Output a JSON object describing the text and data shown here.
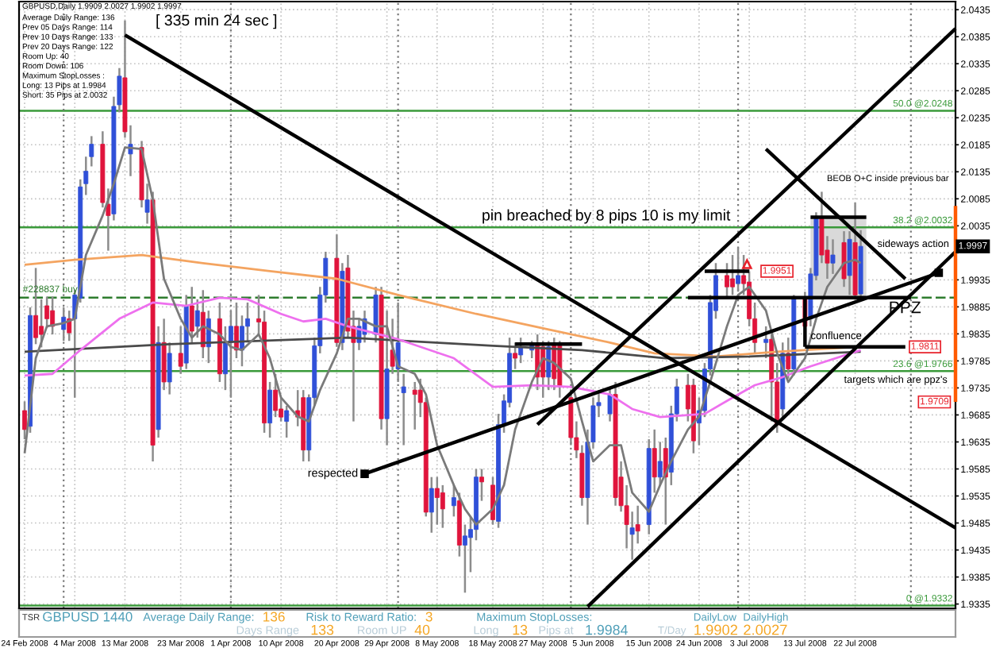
{
  "chart_data": [
    {
      "type": "candlestick",
      "title": "GBPUSD,Daily 1.9909 2.0027 1.9902 1.9997",
      "subtitle": "[ 335 min 24 sec ]",
      "x": [
        "2008-02-24",
        "2008-02-25",
        "2008-02-26",
        "2008-02-27",
        "2008-02-28",
        "2008-02-29",
        "2008-03-02",
        "2008-03-03",
        "2008-03-04",
        "2008-03-05",
        "2008-03-06",
        "2008-03-07",
        "2008-03-09",
        "2008-03-10",
        "2008-03-11",
        "2008-03-12",
        "2008-03-13",
        "2008-03-14",
        "2008-03-16",
        "2008-03-17",
        "2008-03-18",
        "2008-03-19",
        "2008-03-20",
        "2008-03-21",
        "2008-03-23",
        "2008-03-24",
        "2008-03-25",
        "2008-03-26",
        "2008-03-27",
        "2008-03-28",
        "2008-03-30",
        "2008-03-31",
        "2008-04-01",
        "2008-04-02",
        "2008-04-03",
        "2008-04-04",
        "2008-04-06",
        "2008-04-07",
        "2008-04-08",
        "2008-04-09",
        "2008-04-10",
        "2008-04-11",
        "2008-04-13",
        "2008-04-14",
        "2008-04-15",
        "2008-04-16",
        "2008-04-17",
        "2008-04-18",
        "2008-04-20",
        "2008-04-21",
        "2008-04-22",
        "2008-04-23",
        "2008-04-24",
        "2008-04-25",
        "2008-04-27",
        "2008-04-28",
        "2008-04-29",
        "2008-04-30",
        "2008-05-01",
        "2008-05-02",
        "2008-05-04",
        "2008-05-05",
        "2008-05-06",
        "2008-05-07",
        "2008-05-08",
        "2008-05-09",
        "2008-05-11",
        "2008-05-12",
        "2008-05-13",
        "2008-05-14",
        "2008-05-15",
        "2008-05-16",
        "2008-05-18",
        "2008-05-19",
        "2008-05-20",
        "2008-05-21",
        "2008-05-22",
        "2008-05-23",
        "2008-05-25",
        "2008-05-26",
        "2008-05-27",
        "2008-05-28",
        "2008-05-29",
        "2008-05-30",
        "2008-06-01",
        "2008-06-02",
        "2008-06-03",
        "2008-06-04",
        "2008-06-05",
        "2008-06-06",
        "2008-06-08",
        "2008-06-09",
        "2008-06-10",
        "2008-06-11",
        "2008-06-12",
        "2008-06-13",
        "2008-06-15",
        "2008-06-16",
        "2008-06-17",
        "2008-06-18",
        "2008-06-19",
        "2008-06-20",
        "2008-06-22",
        "2008-06-23",
        "2008-06-24",
        "2008-06-25",
        "2008-06-26",
        "2008-06-27",
        "2008-06-29",
        "2008-06-30",
        "2008-07-01",
        "2008-07-02",
        "2008-07-03",
        "2008-07-04",
        "2008-07-06",
        "2008-07-07",
        "2008-07-08",
        "2008-07-09",
        "2008-07-10",
        "2008-07-11",
        "2008-07-13",
        "2008-07-14",
        "2008-07-15",
        "2008-07-16",
        "2008-07-17",
        "2008-07-18",
        "2008-07-20",
        "2008-07-21",
        "2008-07-22",
        "2008-07-23"
      ],
      "ohlc": [
        [
          1.9693,
          1.971,
          1.964,
          1.9658
        ],
        [
          1.9664,
          1.9884,
          1.9652,
          1.9869
        ],
        [
          1.9869,
          1.9957,
          1.9816,
          1.9828
        ],
        [
          1.9849,
          1.9899,
          1.981,
          1.9834
        ],
        [
          1.9887,
          1.9904,
          1.9846,
          1.9863
        ],
        [
          1.9878,
          1.9904,
          1.9834,
          1.9849
        ],
        [
          1.9843,
          1.9884,
          1.9822,
          1.9866
        ],
        [
          1.9863,
          1.9878,
          1.9822,
          1.9837
        ],
        [
          1.9863,
          1.9916,
          1.9717,
          1.9907
        ],
        [
          1.9901,
          2.0121,
          1.9893,
          2.0107
        ],
        [
          2.0113,
          2.0163,
          2.0092,
          2.0136
        ],
        [
          2.0163,
          2.0201,
          2.0145,
          2.0186
        ],
        [
          2.0186,
          2.021,
          2.0069,
          2.0078
        ],
        [
          2.0075,
          2.0104,
          1.9989,
          2.0054
        ],
        [
          2.0057,
          2.0274,
          2.0045,
          2.0256
        ],
        [
          2.0259,
          2.0327,
          2.0245,
          2.0312
        ],
        [
          2.0309,
          2.0415,
          2.0198,
          2.0209
        ],
        [
          2.0168,
          2.0221,
          2.0127,
          2.0186
        ],
        [
          2.018,
          2.0192,
          2.0069,
          2.0083
        ],
        [
          2.006,
          2.0113,
          2.0039,
          2.0083
        ],
        [
          2.0083,
          2.0098,
          1.9599,
          1.9629
        ],
        [
          1.9658,
          1.9849,
          1.9643,
          1.9819
        ],
        [
          1.9819,
          1.9863,
          1.9731,
          1.9746
        ],
        [
          1.9746,
          1.9819,
          1.9723,
          1.9799
        ],
        [
          1.9799,
          1.9849,
          1.9761,
          1.9775
        ],
        [
          1.9781,
          1.9907,
          1.977,
          1.9887
        ],
        [
          1.9887,
          1.9922,
          1.9819,
          1.984
        ],
        [
          1.9849,
          1.9899,
          1.9828,
          1.9878
        ],
        [
          1.9875,
          1.9916,
          1.979,
          1.9811
        ],
        [
          1.9811,
          1.9878,
          1.9781,
          1.9863
        ],
        [
          1.9863,
          1.9893,
          1.9746,
          1.9761
        ],
        [
          1.9761,
          1.9849,
          1.9731,
          1.9819
        ],
        [
          1.9819,
          1.9878,
          1.9717,
          1.9849
        ],
        [
          1.9849,
          1.9893,
          1.979,
          1.9805
        ],
        [
          1.9805,
          1.9869,
          1.9775,
          1.9849
        ],
        [
          1.9849,
          1.9893,
          1.9819,
          1.9863
        ],
        [
          1.9863,
          1.9907,
          1.9834,
          1.9857
        ],
        [
          1.9857,
          1.9878,
          1.9652,
          1.967
        ],
        [
          1.967,
          1.9746,
          1.9643,
          1.9731
        ],
        [
          1.9731,
          1.9761,
          1.9681,
          1.9693
        ],
        [
          1.9696,
          1.9717,
          1.9673,
          1.9681
        ],
        [
          1.9673,
          1.9702,
          1.9643,
          1.9693
        ],
        [
          1.9693,
          1.9731,
          1.9664,
          1.9681
        ],
        [
          1.9717,
          1.9731,
          1.9599,
          1.962
        ],
        [
          1.962,
          1.9723,
          1.9599,
          1.9717
        ],
        [
          1.9717,
          1.9828,
          1.9702,
          1.9813
        ],
        [
          1.9813,
          1.9922,
          1.9799,
          1.9907
        ],
        [
          1.9907,
          1.9987,
          1.9893,
          1.9975
        ],
        [
          1.9975,
          2.0019,
          1.9811,
          1.9819
        ],
        [
          1.9819,
          1.9966,
          1.9805,
          1.9951
        ],
        [
          1.9957,
          1.9981,
          1.9828,
          1.984
        ],
        [
          1.9849,
          1.9878,
          1.9673,
          1.9819
        ],
        [
          1.9819,
          1.9863,
          1.9805,
          1.9849
        ],
        [
          1.9834,
          1.9878,
          1.9819,
          1.9863
        ],
        [
          1.9834,
          1.9922,
          1.9819,
          1.9907
        ],
        [
          1.9907,
          1.9922,
          1.9658,
          1.9678
        ],
        [
          1.9678,
          1.9878,
          1.9629,
          1.977
        ],
        [
          1.9805,
          1.9863,
          1.9761,
          1.9775
        ],
        [
          1.977,
          1.9893,
          1.9746,
          1.9819
        ],
        [
          1.9726,
          1.9761,
          1.9629,
          1.9737
        ],
        [
          1.9731,
          1.9746,
          1.9658,
          1.9723
        ],
        [
          1.9731,
          1.9752,
          1.9681,
          1.9708
        ],
        [
          1.9708,
          1.9717,
          1.9497,
          1.9505
        ],
        [
          1.9505,
          1.957,
          1.9467,
          1.9549
        ],
        [
          1.9549,
          1.957,
          1.9482,
          1.9532
        ],
        [
          1.9541,
          1.9555,
          1.9476,
          1.9511
        ],
        [
          1.9517,
          1.9555,
          1.9497,
          1.9532
        ],
        [
          1.9526,
          1.9541,
          1.9423,
          1.9444
        ],
        [
          1.9444,
          1.9482,
          1.9356,
          1.9461
        ],
        [
          1.9458,
          1.9497,
          1.9394,
          1.9473
        ],
        [
          1.9473,
          1.9585,
          1.9453,
          1.957
        ],
        [
          1.957,
          1.9585,
          1.9526,
          1.9561
        ],
        [
          1.9555,
          1.957,
          1.9482,
          1.9491
        ],
        [
          1.9488,
          1.9687,
          1.9476,
          1.9667
        ],
        [
          1.9667,
          1.9723,
          1.9652,
          1.9711
        ],
        [
          1.9708,
          1.9828,
          1.9699,
          1.9799
        ],
        [
          1.9799,
          1.9819,
          1.977,
          1.979
        ],
        [
          1.9796,
          1.9828,
          1.9781,
          1.9811
        ],
        [
          1.9805,
          1.9822,
          1.979,
          1.9813
        ],
        [
          1.9813,
          1.9834,
          1.9731,
          1.9755
        ],
        [
          1.9811,
          1.9822,
          1.9717,
          1.9755
        ],
        [
          1.9755,
          1.9822,
          1.9731,
          1.9811
        ],
        [
          1.9813,
          1.9828,
          1.9731,
          1.9752
        ],
        [
          1.9813,
          1.9822,
          1.9717,
          1.9737
        ],
        [
          1.9717,
          1.9731,
          1.9629,
          1.9643
        ],
        [
          1.9643,
          1.9673,
          1.9605,
          1.962
        ],
        [
          1.9614,
          1.9629,
          1.9517,
          1.9532
        ],
        [
          1.9532,
          1.9658,
          1.9482,
          1.9635
        ],
        [
          1.9635,
          1.9717,
          1.9623,
          1.9702
        ],
        [
          1.9702,
          1.9731,
          1.9681,
          1.9708
        ],
        [
          1.9687,
          1.9734,
          1.9673,
          1.9723
        ],
        [
          1.9723,
          1.9746,
          1.9517,
          1.9532
        ],
        [
          1.957,
          1.9599,
          1.9506,
          1.9517
        ],
        [
          1.9517,
          1.9555,
          1.9438,
          1.9482
        ],
        [
          1.9464,
          1.9506,
          1.9417,
          1.9476
        ],
        [
          1.9482,
          1.9517,
          1.9447,
          1.947
        ],
        [
          1.9482,
          1.964,
          1.9464,
          1.9623
        ],
        [
          1.9623,
          1.9658,
          1.9541,
          1.957
        ],
        [
          1.957,
          1.9635,
          1.9555,
          1.9599
        ],
        [
          1.9623,
          1.9643,
          1.9482,
          1.957
        ],
        [
          1.9579,
          1.9702,
          1.9555,
          1.9687
        ],
        [
          1.9687,
          1.9752,
          1.9673,
          1.9737
        ],
        [
          1.974,
          1.9761,
          1.9673,
          1.9696
        ],
        [
          1.974,
          1.9752,
          1.9614,
          1.9637
        ],
        [
          1.967,
          1.9717,
          1.9629,
          1.9693
        ],
        [
          1.9693,
          1.9781,
          1.9681,
          1.977
        ],
        [
          1.977,
          1.9907,
          1.9758,
          1.9893
        ],
        [
          1.9878,
          1.9966,
          1.9863,
          1.9943
        ],
        [
          1.9943,
          1.9966,
          1.9904,
          1.9922
        ],
        [
          1.9937,
          1.9981,
          1.9907,
          1.9922
        ],
        [
          1.9928,
          1.9995,
          1.9913,
          1.9943
        ],
        [
          1.9943,
          1.9981,
          1.9907,
          1.9928
        ],
        [
          1.9931,
          1.9951,
          1.9849,
          1.9863
        ],
        [
          1.9863,
          1.9893,
          1.9799,
          1.9819
        ],
        [
          1.9819,
          1.9849,
          1.979,
          1.9825
        ],
        [
          1.9825,
          1.9834,
          1.9673,
          1.9746
        ],
        [
          1.9746,
          1.9781,
          1.9652,
          1.9667
        ],
        [
          1.9696,
          1.9819,
          1.9681,
          1.9799
        ],
        [
          1.9799,
          1.9828,
          1.9752,
          1.977
        ],
        [
          1.977,
          1.9907,
          1.9758,
          1.9899
        ],
        [
          1.9899,
          1.9913,
          1.9834,
          1.9849
        ],
        [
          1.9863,
          1.9957,
          1.9849,
          1.9946
        ],
        [
          1.9943,
          2.006,
          1.9934,
          2.0048
        ],
        [
          2.0048,
          2.0098,
          1.9966,
          1.9981
        ],
        [
          1.999,
          2.0016,
          1.9937,
          1.9966
        ],
        [
          1.9966,
          2.001,
          1.9946,
          1.9981
        ],
        [
          2.0004,
          2.0025,
          1.9922,
          1.9937
        ],
        [
          1.9943,
          2.0025,
          1.9907,
          2.001
        ],
        [
          2.0004,
          2.0078,
          1.9898,
          1.9907
        ],
        [
          1.9909,
          2.0027,
          1.9902,
          1.9997
        ]
      ],
      "colors": [
        "#e0143c",
        "#3050d8",
        "#e0143c",
        "#e0143c",
        "#e0143c",
        "#e0143c",
        "#3050d8",
        "#e0143c",
        "#3050d8",
        "#3050d8",
        "#3050d8",
        "#3050d8",
        "#e0143c",
        "#e0143c",
        "#3050d8",
        "#3050d8",
        "#e0143c",
        "#3050d8",
        "#e0143c",
        "#3050d8",
        "#e0143c",
        "#3050d8",
        "#e0143c",
        "#3050d8",
        "#e0143c",
        "#3050d8",
        "#e0143c",
        "#3050d8",
        "#e0143c",
        "#3050d8",
        "#e0143c",
        "#3050d8",
        "#3050d8",
        "#e0143c",
        "#3050d8",
        "#3050d8",
        "#e0143c",
        "#e0143c",
        "#3050d8",
        "#e0143c",
        "#e0143c",
        "#3050d8",
        "#e0143c",
        "#e0143c",
        "#3050d8",
        "#3050d8",
        "#3050d8",
        "#3050d8",
        "#e0143c",
        "#3050d8",
        "#e0143c",
        "#e0143c",
        "#3050d8",
        "#3050d8",
        "#3050d8",
        "#e0143c",
        "#3050d8",
        "#e0143c",
        "#3050d8",
        "#3050d8",
        "#e0143c",
        "#e0143c",
        "#e0143c",
        "#3050d8",
        "#e0143c",
        "#e0143c",
        "#3050d8",
        "#e0143c",
        "#3050d8",
        "#3050d8",
        "#3050d8",
        "#e0143c",
        "#e0143c",
        "#3050d8",
        "#3050d8",
        "#3050d8",
        "#e0143c",
        "#3050d8",
        "#3050d8",
        "#e0143c",
        "#e0143c",
        "#3050d8",
        "#e0143c",
        "#e0143c",
        "#e0143c",
        "#e0143c",
        "#e0143c",
        "#3050d8",
        "#3050d8",
        "#3050d8",
        "#3050d8",
        "#e0143c",
        "#e0143c",
        "#e0143c",
        "#3050d8",
        "#e0143c",
        "#3050d8",
        "#e0143c",
        "#3050d8",
        "#e0143c",
        "#3050d8",
        "#3050d8",
        "#e0143c",
        "#e0143c",
        "#3050d8",
        "#3050d8",
        "#3050d8",
        "#3050d8",
        "#e0143c",
        "#e0143c",
        "#3050d8",
        "#e0143c",
        "#e0143c",
        "#e0143c",
        "#3050d8",
        "#e0143c",
        "#e0143c",
        "#3050d8",
        "#e0143c",
        "#3050d8",
        "#e0143c",
        "#3050d8",
        "#3050d8",
        "#e0143c",
        "#e0143c",
        "#3050d8",
        "#e0143c",
        "#3050d8",
        "#e0143c",
        "#3050d8"
      ],
      "xlim": [
        "2008-02-23",
        "2008-08-09"
      ],
      "xticks": [
        {
          "value": "2008-02-24",
          "label": "24 Feb 2008"
        },
        {
          "value": "2008-03-04",
          "label": "4 Mar 2008"
        },
        {
          "value": "2008-03-13",
          "label": "13 Mar 2008"
        },
        {
          "value": "2008-03-23",
          "label": "23 Mar 2008"
        },
        {
          "value": "2008-04-01",
          "label": "1 Apr 2008"
        },
        {
          "value": "2008-04-10",
          "label": "10 Apr 2008"
        },
        {
          "value": "2008-04-20",
          "label": "20 Apr 2008"
        },
        {
          "value": "2008-04-29",
          "label": "29 Apr 2008"
        },
        {
          "value": "2008-05-08",
          "label": "8 May 2008"
        },
        {
          "value": "2008-05-18",
          "label": "18 May 2008"
        },
        {
          "value": "2008-05-27",
          "label": "27 May 2008"
        },
        {
          "value": "2008-06-05",
          "label": "5 Jun 2008"
        },
        {
          "value": "2008-06-15",
          "label": "15 Jun 2008"
        },
        {
          "value": "2008-06-24",
          "label": "24 Jun 2008"
        },
        {
          "value": "2008-07-03",
          "label": "3 Jul 2008"
        },
        {
          "value": "2008-07-13",
          "label": "13 Jul 2008"
        },
        {
          "value": "2008-07-22",
          "label": "22 Jul 2008"
        }
      ],
      "ylim": [
        1.9327,
        2.045
      ],
      "yticks": [
        2.0435,
        2.0385,
        2.0335,
        2.0285,
        2.0235,
        2.0185,
        2.0135,
        2.0085,
        2.0035,
        {
          "value": 1.9985,
          "label": null
        },
        1.9935,
        1.9885,
        1.9835,
        1.9785,
        1.9735,
        1.9685,
        1.9635,
        1.9585,
        1.9535,
        1.9485,
        1.9435,
        1.9385,
        1.9335
      ],
      "grid": true,
      "series": [
        {
          "type": "line",
          "color": "#f4a460",
          "x": [
            "2008-02-24",
            "2008-03-04",
            "2008-03-16",
            "2008-03-27",
            "2008-04-08",
            "2008-04-20",
            "2008-05-01",
            "2008-05-15",
            "2008-05-28",
            "2008-06-08",
            "2008-06-16",
            "2008-06-27",
            "2008-07-08",
            "2008-07-23"
          ],
          "values": [
            1.9963,
            1.9972,
            1.9981,
            1.9966,
            1.9951,
            1.9937,
            1.9907,
            1.9872,
            1.9843,
            1.9819,
            1.9799,
            1.9793,
            1.9802,
            1.9811
          ]
        },
        {
          "type": "line",
          "color": "#4a4a4a",
          "x": [
            "2008-02-24",
            "2008-03-21",
            "2008-04-22",
            "2008-05-18",
            "2008-06-03",
            "2008-06-18",
            "2008-07-03",
            "2008-07-23"
          ],
          "values": [
            1.9802,
            1.9816,
            1.9828,
            1.9813,
            1.9805,
            1.979,
            1.9793,
            1.9802
          ]
        },
        {
          "type": "line",
          "color": "#ee70ee",
          "x": [
            "2008-02-24",
            "2008-02-29",
            "2008-03-05",
            "2008-03-12",
            "2008-03-18",
            "2008-03-24",
            "2008-03-30",
            "2008-04-04",
            "2008-04-10",
            "2008-04-14",
            "2008-04-18",
            "2008-04-22",
            "2008-05-01",
            "2008-05-11",
            "2008-05-18",
            "2008-05-25",
            "2008-06-01",
            "2008-06-08",
            "2008-06-12",
            "2008-06-17",
            "2008-06-25",
            "2008-06-30",
            "2008-07-04",
            "2008-07-09",
            "2008-07-14",
            "2008-07-23"
          ],
          "values": [
            1.9758,
            1.9761,
            1.9805,
            1.9863,
            1.9893,
            1.9887,
            1.9902,
            1.9899,
            1.9872,
            1.9858,
            1.9863,
            1.9849,
            1.9825,
            1.979,
            1.9737,
            1.974,
            1.9737,
            1.9723,
            1.9696,
            1.9681,
            1.9687,
            1.9717,
            1.974,
            1.9755,
            1.9775,
            1.9805
          ]
        },
        {
          "type": "line",
          "color": "#7a7a7a",
          "x": [
            "2008-02-24",
            "2008-02-26",
            "2008-02-28",
            "2008-03-02",
            "2008-03-04",
            "2008-03-06",
            "2008-03-09",
            "2008-03-11",
            "2008-03-13",
            "2008-03-16",
            "2008-03-18",
            "2008-03-20",
            "2008-03-23",
            "2008-03-25",
            "2008-03-27",
            "2008-03-30",
            "2008-04-01",
            "2008-04-03",
            "2008-04-06",
            "2008-04-08",
            "2008-04-10",
            "2008-04-13",
            "2008-04-15",
            "2008-04-17",
            "2008-04-20",
            "2008-04-22",
            "2008-04-24",
            "2008-04-27",
            "2008-04-29",
            "2008-05-01",
            "2008-05-04",
            "2008-05-06",
            "2008-05-08",
            "2008-05-11",
            "2008-05-13",
            "2008-05-15",
            "2008-05-18",
            "2008-05-20",
            "2008-05-22",
            "2008-05-25",
            "2008-05-27",
            "2008-05-29",
            "2008-06-01",
            "2008-06-03",
            "2008-06-05",
            "2008-06-08",
            "2008-06-10",
            "2008-06-12",
            "2008-06-15",
            "2008-06-17",
            "2008-06-19",
            "2008-06-22",
            "2008-06-24",
            "2008-06-26",
            "2008-06-29",
            "2008-07-01",
            "2008-07-03",
            "2008-07-06",
            "2008-07-08",
            "2008-07-10",
            "2008-07-13",
            "2008-07-15",
            "2008-07-17",
            "2008-07-20",
            "2008-07-22",
            "2008-07-23"
          ],
          "values": [
            1.9614,
            1.979,
            1.9849,
            1.9855,
            1.9863,
            1.9981,
            2.0054,
            2.0113,
            2.018,
            2.0177,
            2.0083,
            1.9937,
            1.9863,
            1.9828,
            1.9849,
            1.9834,
            1.9811,
            1.9805,
            1.9834,
            1.979,
            1.9717,
            1.9682,
            1.9673,
            1.9731,
            1.9799,
            1.9863,
            1.9863,
            1.9849,
            1.9849,
            1.9775,
            1.9761,
            1.9723,
            1.9629,
            1.9555,
            1.9511,
            1.9482,
            1.9511,
            1.9555,
            1.9658,
            1.9746,
            1.979,
            1.9781,
            1.9752,
            1.9673,
            1.9599,
            1.9629,
            1.9629,
            1.9541,
            1.9506,
            1.9555,
            1.9599,
            1.9658,
            1.9682,
            1.9746,
            1.9849,
            1.9907,
            1.9922,
            1.9878,
            1.9799,
            1.9746,
            1.979,
            1.9863,
            1.9922,
            1.9966,
            1.9972,
            1.9966
          ]
        },
        {
          "type": "line",
          "color": "#000000",
          "x": [
            "2008-03-13",
            "2008-08-09"
          ],
          "values": [
            2.0388,
            1.9476
          ]
        },
        {
          "type": "line",
          "color": "#000000",
          "marker": "square",
          "x": [
            "2008-04-25",
            "2008-08-06"
          ],
          "values": [
            1.9576,
            1.9948
          ]
        },
        {
          "type": "line",
          "color": "#000000",
          "x": [
            "2008-06-04",
            "2008-08-09"
          ],
          "values": [
            1.933,
            1.9987
          ]
        },
        {
          "type": "line",
          "color": "#000000",
          "x": [
            "2008-05-26",
            "2008-08-09"
          ],
          "values": [
            1.9667,
            2.04
          ]
        },
        {
          "type": "line",
          "color": "#000000",
          "x": [
            "2008-07-06",
            "2008-07-31"
          ],
          "values": [
            2.0177,
            1.9937
          ]
        },
        {
          "type": "line",
          "color": "#000000",
          "x": [
            "2008-05-22",
            "2008-06-03"
          ],
          "values": [
            1.9816,
            1.9816
          ]
        },
        {
          "type": "line",
          "color": "#000000",
          "x": [
            "2008-06-22",
            "2008-08-01"
          ],
          "values": [
            1.9902,
            1.9902
          ]
        },
        {
          "type": "line",
          "color": "#000000",
          "x": [
            "2008-06-25",
            "2008-07-03"
          ],
          "values": [
            1.9951,
            1.9951
          ]
        },
        {
          "type": "line",
          "color": "#000000",
          "x": [
            "2008-07-14",
            "2008-07-24"
          ],
          "values": [
            2.0051,
            2.0051
          ],
          "upper": [
            2.0051,
            2.0051
          ],
          "lower": [
            1.9902,
            1.9902
          ]
        },
        {
          "type": "line",
          "color": "#000000",
          "x": [
            "2008-07-13",
            "2008-07-31"
          ],
          "values": [
            1.9811,
            1.9811
          ]
        },
        {
          "type": "line",
          "color": "#000000",
          "x": [
            "2008-07-13",
            "2008-07-13"
          ],
          "values": [
            1.9902,
            1.9811
          ]
        },
        {
          "type": "line",
          "color": "#ff5a00",
          "x": [
            "2008-08-09",
            "2008-08-09"
          ],
          "values": [
            2.0072,
            1.9709
          ]
        }
      ],
      "ref_lines": [
        {
          "axis": "y",
          "value": 2.0248,
          "label": "50.0 @2.0248",
          "color": "#3a9a3a"
        },
        {
          "axis": "y",
          "value": 2.0032,
          "label": "38.2 @2.0032",
          "color": "#3a9a3a"
        },
        {
          "axis": "y",
          "value": 1.9766,
          "label": "23.6 @1.9766",
          "color": "#3a9a3a"
        },
        {
          "axis": "y",
          "value": 1.9332,
          "label": "0 @1.9332",
          "color": "#3a9a3a"
        },
        {
          "axis": "y",
          "value": 1.9902,
          "label": "#228837 buy",
          "color": "#2f7d2f",
          "line_style": "dashed"
        },
        {
          "axis": "x",
          "value": "2008-03-02",
          "color": "#7a7a7a",
          "line_style": "dotted"
        },
        {
          "axis": "x",
          "value": "2008-04-01",
          "color": "#7a7a7a",
          "line_style": "dotted"
        },
        {
          "axis": "x",
          "value": "2008-05-01",
          "color": "#7a7a7a",
          "line_style": "dotted"
        },
        {
          "axis": "x",
          "value": "2008-06-01",
          "color": "#7a7a7a",
          "line_style": "dotted"
        },
        {
          "axis": "x",
          "value": "2008-07-01",
          "color": "#7a7a7a",
          "line_style": "dotted"
        },
        {
          "axis": "x",
          "value": "2008-08-01",
          "color": "#7a7a7a",
          "line_style": "dotted"
        }
      ],
      "annotations": [
        "Average Daily Range: 136",
        "Prev 05 Days Range: 114",
        "Prev 10 Days Range: 133",
        "Prev 20 Days Range: 122",
        "Room Up: 40",
        "Room Down: 106",
        "Maximum StopLosses :",
        "Long: 13 Pips at 1.9984",
        "Short: 35 Pips at 2.0032",
        "BEOB O+C inside previous bar",
        {
          "text": "pin breached by 8 pips 10 is my limit",
          "x": "2008-05-16",
          "y": 2.0039
        },
        {
          "text": "sideways action",
          "x": "2008-07-26",
          "y": 1.9992
        },
        {
          "text": "PPZ",
          "x": "2008-07-28",
          "y": 1.9896
        },
        {
          "text": "confluence",
          "x": "2008-07-14",
          "y": 1.9811
        },
        {
          "text": "targets which are ppz's",
          "x": "2008-07-20",
          "y": 1.9758
        },
        {
          "text": "respected",
          "x": "2008-04-25",
          "y": 1.9576
        },
        {
          "text": "1.9951",
          "x": "2008-07-03",
          "y": 1.9951
        },
        {
          "text": "1.9811",
          "x": "2008-07-31",
          "y": 1.9811
        },
        {
          "text": "1.9709",
          "x": "2008-08-09",
          "y": 1.9709
        },
        {
          "text": "1.9997",
          "y": 1.9997
        }
      ]
    },
    {
      "type": "other",
      "annotations": [
        "TSR",
        "GBPUSD 1440",
        "Average Daily Range:",
        "136",
        "Risk to Reward Ratio:",
        "3",
        "Maximum StopLosses:",
        "DailyLow",
        "DailyHigh",
        "Days Range",
        "133",
        "Room UP",
        "40",
        "Long",
        "13",
        "Pips at",
        "1.9984",
        "T/Day",
        "1.9902",
        "2.0027"
      ]
    }
  ]
}
